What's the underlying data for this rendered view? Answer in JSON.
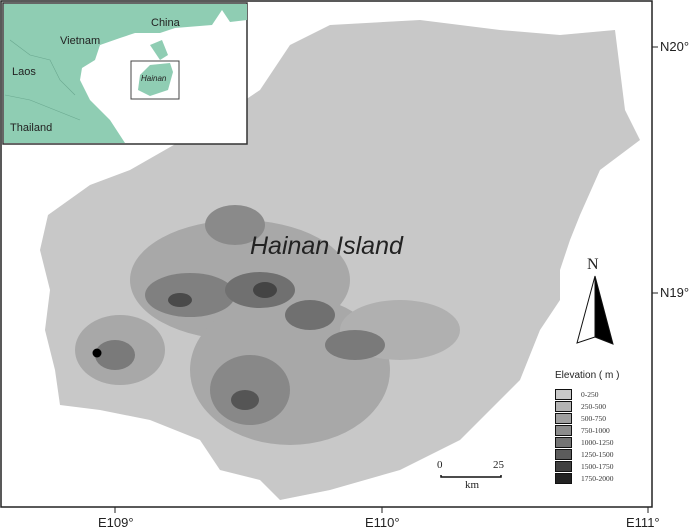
{
  "title": "Hainan Island",
  "axes": {
    "x_ticks": [
      "E109°",
      "E110°",
      "E111°"
    ],
    "y_ticks": [
      "N20°",
      "N19°"
    ]
  },
  "inset": {
    "labels": {
      "china": "China",
      "vietnam": "Vietnam",
      "laos": "Laos",
      "thailand": "Thailand",
      "hainan": "Hainan"
    },
    "land_color": "#8fcdb3"
  },
  "north_arrow": "N",
  "scale_bar": {
    "start": "0",
    "end": "25",
    "unit": "km"
  },
  "legend": {
    "title": "Elevation ( m )",
    "classes": [
      {
        "label": "0-250",
        "color": "#c8c8c8"
      },
      {
        "label": "250-500",
        "color": "#b4b4b4"
      },
      {
        "label": "500-750",
        "color": "#a0a0a0"
      },
      {
        "label": "750-1000",
        "color": "#8c8c8c"
      },
      {
        "label": "1000-1250",
        "color": "#747474"
      },
      {
        "label": "1250-1500",
        "color": "#5c5c5c"
      },
      {
        "label": "1500-1750",
        "color": "#404040"
      },
      {
        "label": "1750-2000",
        "color": "#222222"
      }
    ]
  }
}
